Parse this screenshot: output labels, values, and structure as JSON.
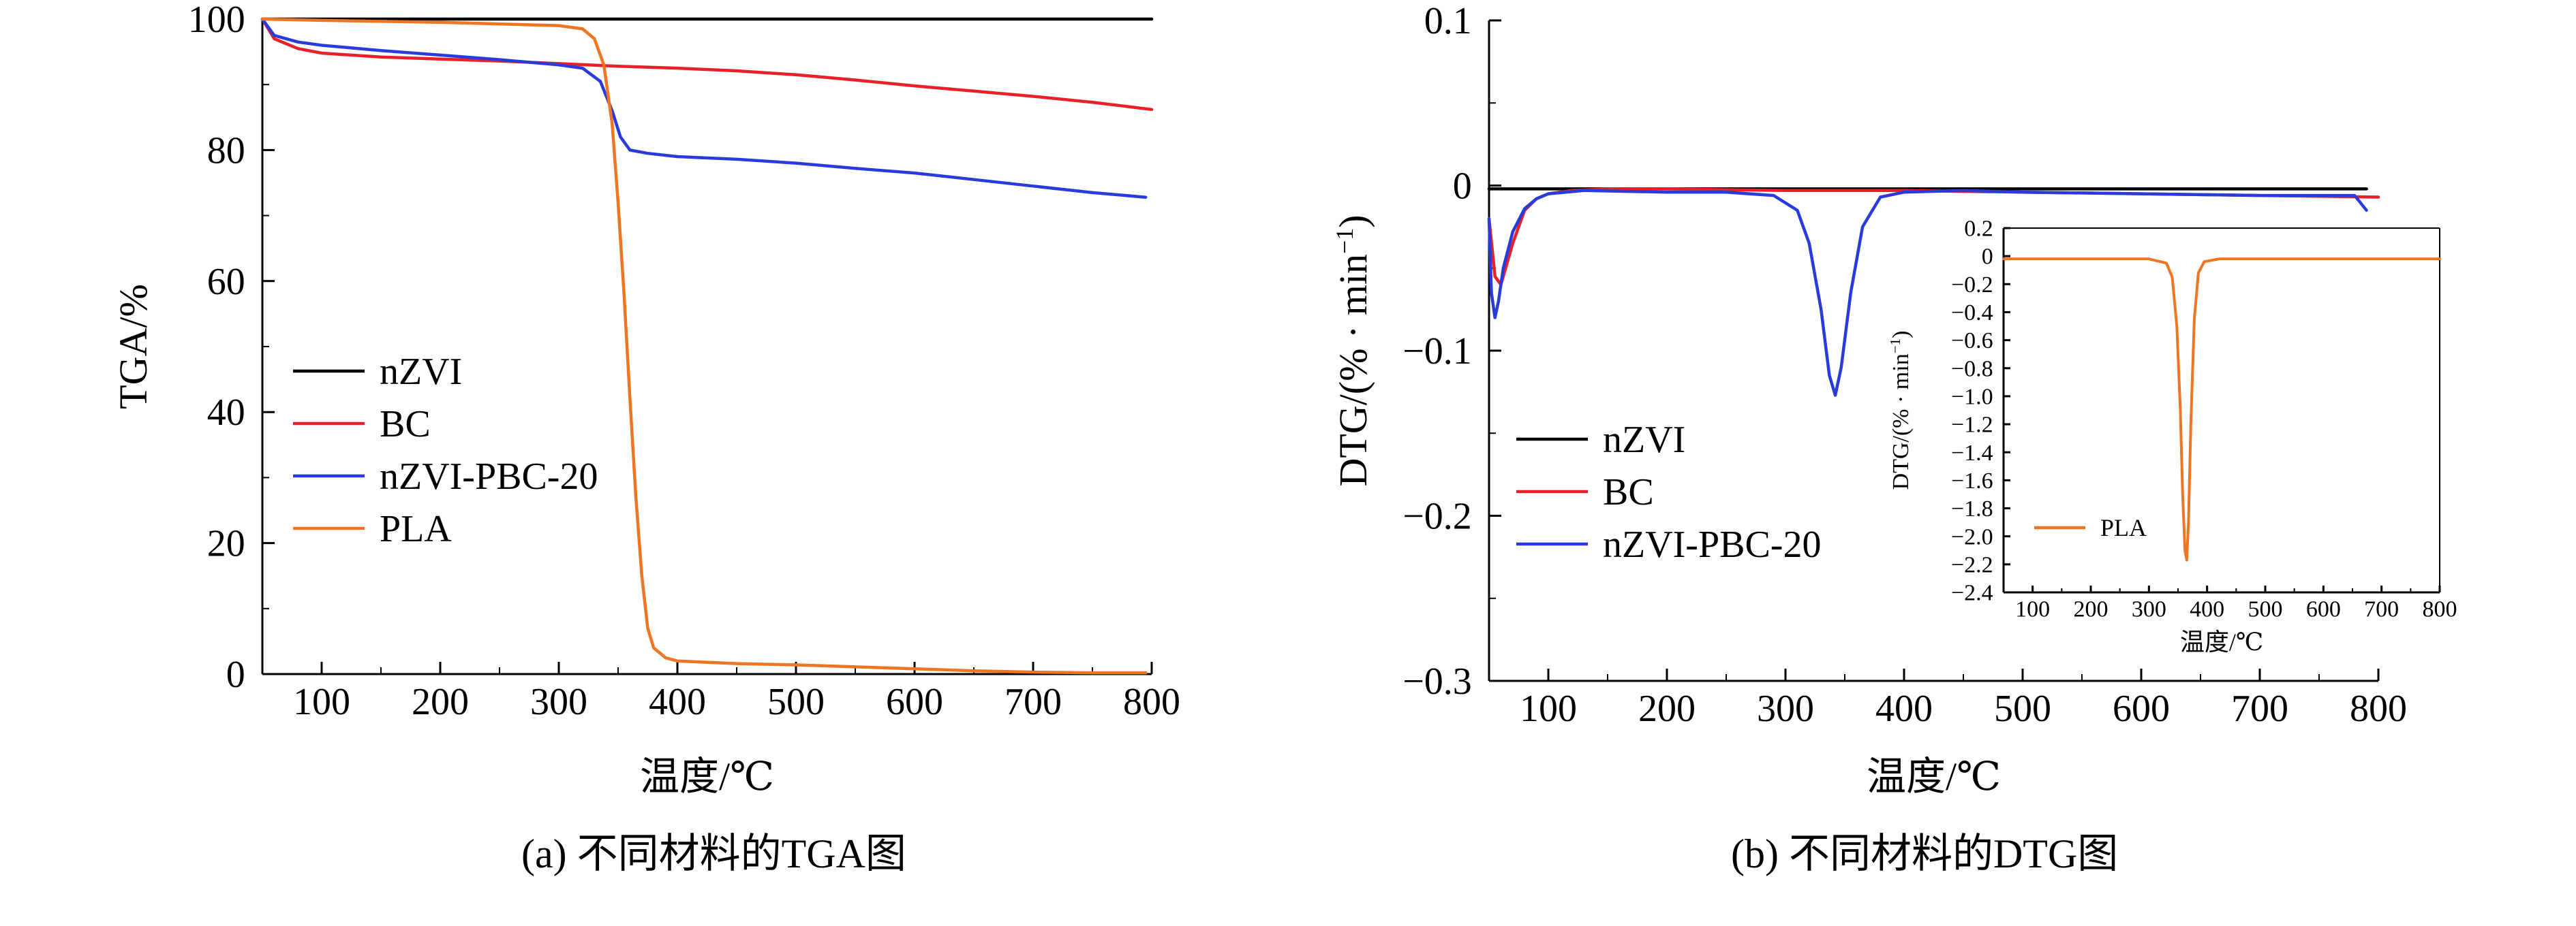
{
  "chart_data": [
    {
      "type": "line",
      "caption": "(a) 不同材料的TGA图",
      "xlabel": "温度/℃",
      "ylabel": "TGA/%",
      "xlim": [
        50,
        800
      ],
      "ylim": [
        0,
        100
      ],
      "xticks": [
        100,
        200,
        300,
        400,
        500,
        600,
        700,
        800
      ],
      "yticks": [
        0,
        20,
        40,
        60,
        80,
        100
      ],
      "legend_position": "left-middle",
      "series": [
        {
          "name": "nZVI",
          "color": "#000000",
          "x": [
            50,
            800
          ],
          "y": [
            100,
            100
          ]
        },
        {
          "name": "BC",
          "color": "#e8202a",
          "x": [
            50,
            60,
            80,
            100,
            150,
            200,
            250,
            300,
            350,
            400,
            450,
            500,
            550,
            600,
            650,
            700,
            750,
            800
          ],
          "y": [
            100,
            97,
            95.5,
            94.8,
            94.2,
            93.9,
            93.6,
            93.2,
            92.8,
            92.5,
            92.1,
            91.5,
            90.7,
            89.8,
            89,
            88.2,
            87.3,
            86.2
          ]
        },
        {
          "name": "nZVI-PBC-20",
          "color": "#2a3bdc",
          "x": [
            50,
            60,
            80,
            100,
            150,
            200,
            250,
            300,
            320,
            335,
            345,
            352,
            360,
            375,
            400,
            450,
            500,
            550,
            600,
            650,
            700,
            750,
            795
          ],
          "y": [
            100,
            97.5,
            96.5,
            96,
            95.2,
            94.5,
            93.8,
            93,
            92.5,
            90.5,
            86,
            82,
            80,
            79.5,
            79,
            78.6,
            78,
            77.2,
            76.5,
            75.5,
            74.5,
            73.5,
            72.8
          ]
        },
        {
          "name": "PLA",
          "color": "#ee7521",
          "x": [
            50,
            100,
            200,
            300,
            320,
            330,
            338,
            345,
            350,
            355,
            360,
            365,
            370,
            375,
            380,
            390,
            400,
            450,
            500,
            550,
            600,
            650,
            700,
            750,
            795
          ],
          "y": [
            100,
            99.8,
            99.5,
            99,
            98.5,
            97,
            93,
            84,
            72,
            58,
            42,
            27,
            15,
            7,
            4,
            2.5,
            2,
            1.6,
            1.4,
            1.1,
            0.8,
            0.5,
            0.3,
            0.2,
            0.2
          ]
        }
      ]
    },
    {
      "type": "line",
      "caption": "(b) 不同材料的DTG图",
      "xlabel": "温度/℃",
      "ylabel_main": "DTG/(% · min",
      "ylabel_sup": "−1",
      "ylabel_close": ")",
      "xlim": [
        50,
        800
      ],
      "ylim": [
        -0.3,
        0.1
      ],
      "xticks": [
        100,
        200,
        300,
        400,
        500,
        600,
        700,
        800
      ],
      "yticks": [
        -0.3,
        -0.2,
        -0.1,
        0,
        0.1
      ],
      "ytick_labels": [
        "−0.3",
        "−0.2",
        "−0.1",
        "0",
        "0.1"
      ],
      "legend_position": "left-bottom",
      "series": [
        {
          "name": "nZVI",
          "color": "#000000",
          "x": [
            50,
            790
          ],
          "y": [
            -0.002,
            -0.002
          ]
        },
        {
          "name": "BC",
          "color": "#e8202a",
          "x": [
            50,
            55,
            60,
            70,
            80,
            90,
            100,
            120,
            150,
            200,
            300,
            400,
            500,
            600,
            700,
            800
          ],
          "y": [
            -0.02,
            -0.055,
            -0.06,
            -0.035,
            -0.015,
            -0.008,
            -0.005,
            -0.003,
            -0.002,
            -0.002,
            -0.003,
            -0.003,
            -0.004,
            -0.005,
            -0.006,
            -0.007
          ]
        },
        {
          "name": "nZVI-PBC-20",
          "color": "#2a3bdc",
          "x": [
            50,
            52,
            55,
            58,
            62,
            70,
            80,
            90,
            100,
            130,
            200,
            250,
            290,
            310,
            320,
            330,
            337,
            342,
            347,
            355,
            365,
            380,
            400,
            450,
            500,
            600,
            700,
            780,
            790
          ],
          "y": [
            -0.02,
            -0.065,
            -0.08,
            -0.07,
            -0.05,
            -0.028,
            -0.014,
            -0.008,
            -0.005,
            -0.003,
            -0.004,
            -0.004,
            -0.006,
            -0.015,
            -0.035,
            -0.075,
            -0.115,
            -0.127,
            -0.11,
            -0.065,
            -0.025,
            -0.007,
            -0.004,
            -0.003,
            -0.004,
            -0.005,
            -0.006,
            -0.006,
            -0.015
          ]
        }
      ]
    },
    {
      "type": "line",
      "inset": true,
      "xlabel": "温度/℃",
      "ylabel_main": "DTG/(% · min",
      "ylabel_sup": "−1",
      "ylabel_close": ")",
      "xlim": [
        50,
        800
      ],
      "ylim": [
        -2.4,
        0.2
      ],
      "xticks": [
        100,
        200,
        300,
        400,
        500,
        600,
        700,
        800
      ],
      "yticks": [
        0.2,
        0,
        -0.2,
        -0.4,
        -0.6,
        -0.8,
        -1.0,
        -1.2,
        -1.4,
        -1.6,
        -1.8,
        -2.0,
        -2.2,
        -2.4
      ],
      "ytick_labels": [
        "0.2",
        "0",
        "−0.2",
        "−0.4",
        "−0.6",
        "−0.8",
        "−1.0",
        "−1.2",
        "−1.4",
        "−1.6",
        "−1.8",
        "−2.0",
        "−2.2",
        "−2.4"
      ],
      "legend_position": "left-bottom",
      "series": [
        {
          "name": "PLA",
          "color": "#ee7521",
          "x": [
            50,
            300,
            330,
            340,
            348,
            354,
            358,
            362,
            365,
            368,
            372,
            378,
            385,
            395,
            420,
            800
          ],
          "y": [
            -0.02,
            -0.02,
            -0.05,
            -0.15,
            -0.5,
            -1.1,
            -1.7,
            -2.1,
            -2.17,
            -1.9,
            -1.2,
            -0.45,
            -0.12,
            -0.04,
            -0.02,
            -0.02
          ]
        }
      ]
    }
  ]
}
